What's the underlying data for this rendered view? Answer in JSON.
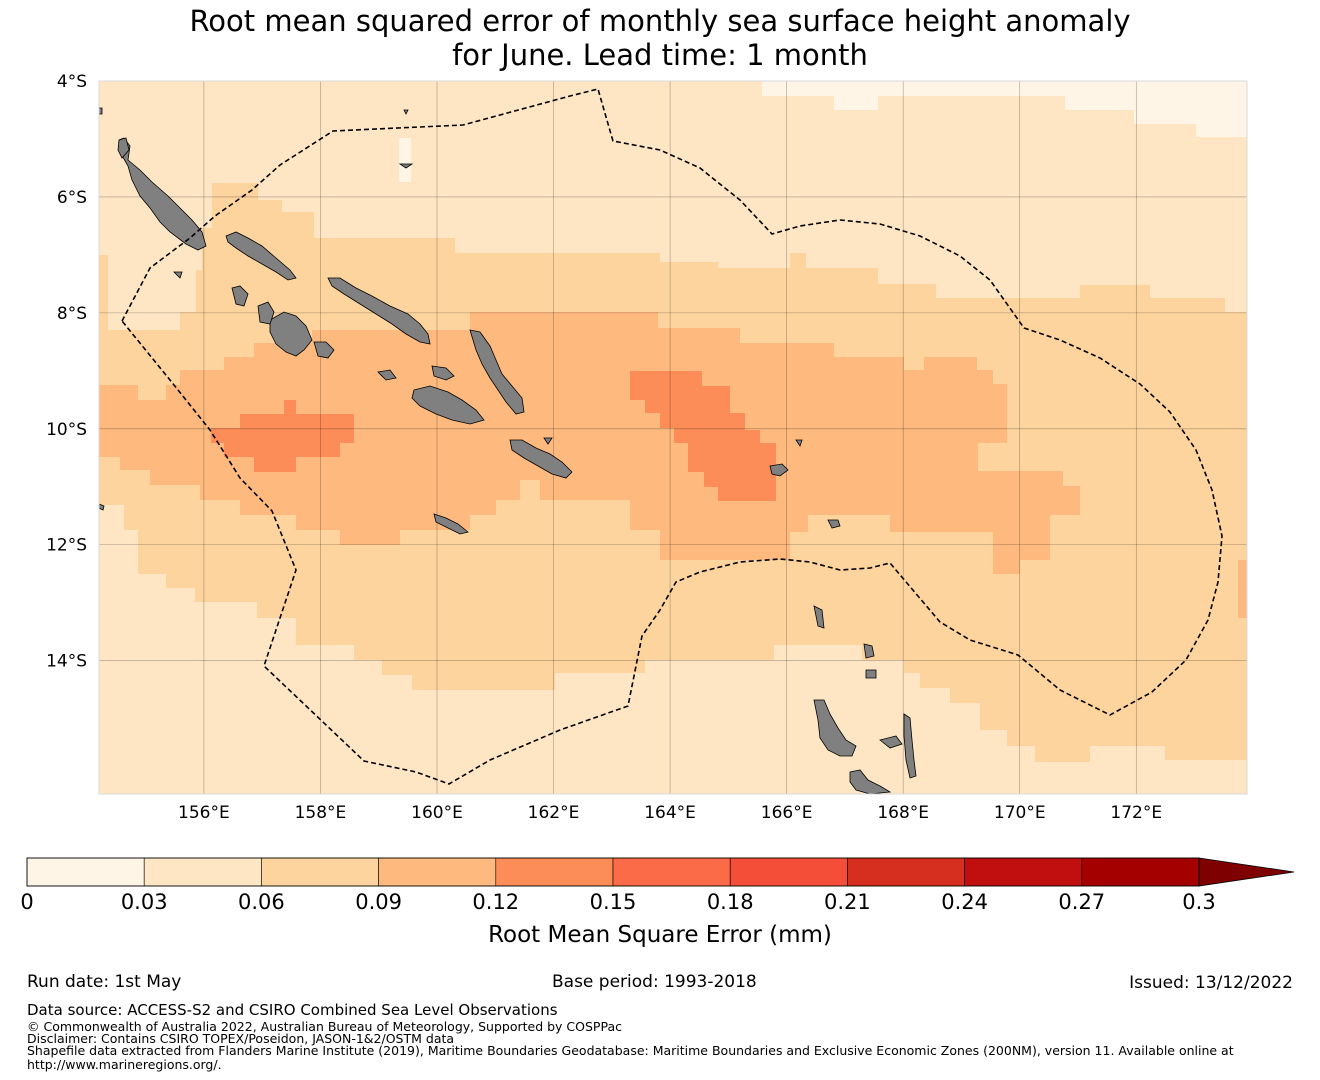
{
  "title": {
    "line1": "Root mean squared error of monthly sea surface height anomaly",
    "line2": "for June. Lead time: 1 month"
  },
  "map": {
    "lon_range": [
      154.2,
      173.9
    ],
    "lat_range": [
      -16.3,
      -4.0
    ],
    "lat_ticks": [
      {
        "value": -4,
        "label": "4°S"
      },
      {
        "value": -6,
        "label": "6°S"
      },
      {
        "value": -8,
        "label": "8°S"
      },
      {
        "value": -10,
        "label": "10°S"
      },
      {
        "value": -12,
        "label": "12°S"
      },
      {
        "value": -14,
        "label": "14°S"
      }
    ],
    "lon_ticks": [
      {
        "value": 156,
        "label": "156°E"
      },
      {
        "value": 158,
        "label": "158°E"
      },
      {
        "value": 160,
        "label": "160°E"
      },
      {
        "value": 162,
        "label": "162°E"
      },
      {
        "value": 164,
        "label": "164°E"
      },
      {
        "value": 166,
        "label": "166°E"
      },
      {
        "value": 168,
        "label": "168°E"
      },
      {
        "value": 170,
        "label": "170°E"
      },
      {
        "value": 172,
        "label": "172°E"
      }
    ],
    "land_color": "#808080",
    "eez_boundary_style": "dashed black"
  },
  "colorbar": {
    "label": "Root Mean Square Error (mm)",
    "tick_labels": [
      "0",
      "0.03",
      "0.06",
      "0.09",
      "0.12",
      "0.15",
      "0.18",
      "0.21",
      "0.24",
      "0.27",
      "0.3"
    ],
    "colors": [
      "#fff5e7",
      "#fee6c5",
      "#fdd49d",
      "#fdb97e",
      "#fc8d59",
      "#fb6b48",
      "#f44d38",
      "#d62f1f",
      "#c10e0e",
      "#a50000"
    ],
    "extend_color": "#7f0000",
    "extend": "max"
  },
  "footer": {
    "run_date": "Run date: 1st May",
    "base_period": "Base period: 1993-2018",
    "issued": "Issued: 13/12/2022",
    "data_source": "Data source: ACCESS-S2 and CSIRO Combined Sea Level Observations",
    "copyright": "© Commonwealth of Australia 2022, Australian Bureau of Meteorology, Supported by COSPPac",
    "disclaimer": "Disclaimer: Contains CSIRO TOPEX/Poseidon, JASON-1&2/OSTM data",
    "shapefile_line1": "Shapefile data extracted from Flanders Marine Institute (2019), Maritime Boundaries Geodatabase: Maritime Boundaries and Exclusive Economic Zones (200NM), version 11. Available online at",
    "shapefile_line2": "http://www.marineregions.org/."
  }
}
